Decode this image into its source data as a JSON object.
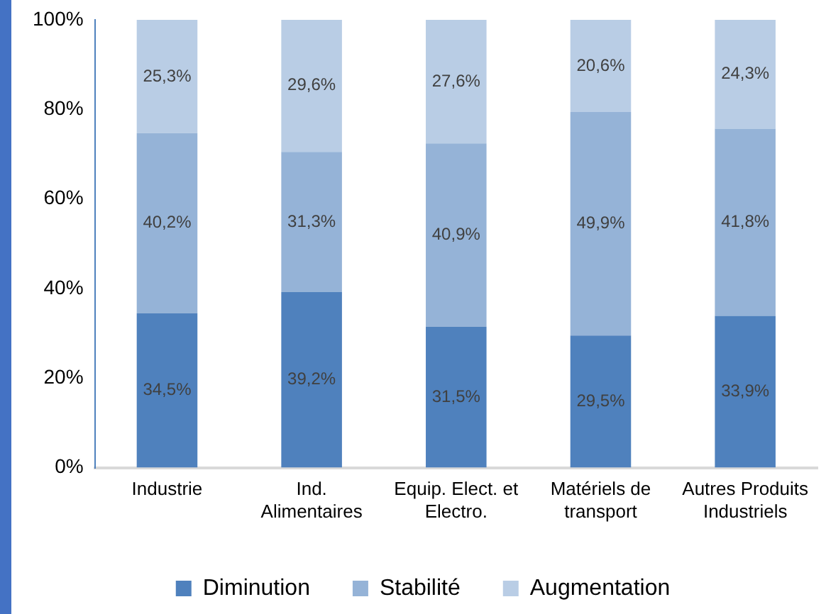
{
  "chart_data": {
    "type": "bar",
    "stacked": true,
    "categories": [
      "Industrie",
      "Ind.\nAlimentaires",
      "Equip. Elect. et\nElectro.",
      "Matériels de\ntransport",
      "Autres Produits\nIndustriels"
    ],
    "series": [
      {
        "name": "Diminution",
        "color": "#4f81bd",
        "values": [
          34.5,
          39.2,
          31.5,
          29.5,
          33.9
        ],
        "value_labels": [
          "34,5%",
          "39,2%",
          "31,5%",
          "29,5%",
          "33,9%"
        ]
      },
      {
        "name": "Stabilité",
        "color": "#95b3d7",
        "values": [
          40.2,
          31.3,
          40.9,
          49.9,
          41.8
        ],
        "value_labels": [
          "40,2%",
          "31,3%",
          "40,9%",
          "49,9%",
          "41,8%"
        ]
      },
      {
        "name": "Augmentation",
        "color": "#b9cde5",
        "values": [
          25.3,
          29.6,
          27.6,
          20.6,
          24.3
        ],
        "value_labels": [
          "25,3%",
          "29,6%",
          "27,6%",
          "20,6%",
          "24,3%"
        ]
      }
    ],
    "ylim": [
      0,
      100
    ],
    "yticks": [
      {
        "value": 0,
        "label": "0%"
      },
      {
        "value": 20,
        "label": "20%"
      },
      {
        "value": 40,
        "label": "40%"
      },
      {
        "value": 60,
        "label": "60%"
      },
      {
        "value": 80,
        "label": "80%"
      },
      {
        "value": 100,
        "label": "100%"
      }
    ],
    "grid": false,
    "legend": "bottom"
  }
}
